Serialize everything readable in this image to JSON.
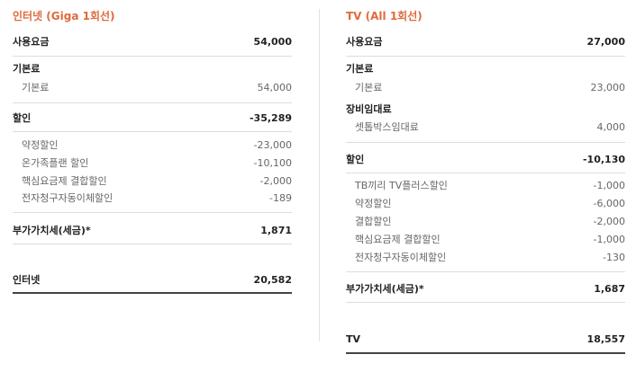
{
  "internet": {
    "title": "인터넷 (Giga 1회선)",
    "usage": {
      "label": "사용요금",
      "value": "54,000"
    },
    "basic": {
      "label": "기본료",
      "items": [
        {
          "label": "기본료",
          "value": "54,000"
        }
      ]
    },
    "discount": {
      "label": "할인",
      "value": "-35,289",
      "items": [
        {
          "label": "약정할인",
          "value": "-23,000"
        },
        {
          "label": "온가족플랜 할인",
          "value": "-10,100"
        },
        {
          "label": "핵심요금제 결합할인",
          "value": "-2,000"
        },
        {
          "label": "전자청구자동이체할인",
          "value": "-189"
        }
      ]
    },
    "vat": {
      "label": "부가가치세(세금)*",
      "value": "1,871"
    },
    "total": {
      "label": "인터넷",
      "value": "20,582"
    }
  },
  "tv": {
    "title": "TV (All 1회선)",
    "usage": {
      "label": "사용요금",
      "value": "27,000"
    },
    "basic": {
      "label": "기본료",
      "items": [
        {
          "label": "기본료",
          "value": "23,000"
        }
      ]
    },
    "rental": {
      "label": "장비임대료",
      "items": [
        {
          "label": "셋톱박스임대료",
          "value": "4,000"
        }
      ]
    },
    "discount": {
      "label": "할인",
      "value": "-10,130",
      "items": [
        {
          "label": "TB끼리 TV플러스할인",
          "value": "-1,000"
        },
        {
          "label": "약정할인",
          "value": "-6,000"
        },
        {
          "label": "결합할인",
          "value": "-2,000"
        },
        {
          "label": "핵심요금제 결합할인",
          "value": "-1,000"
        },
        {
          "label": "전자청구자동이체할인",
          "value": "-130"
        }
      ]
    },
    "vat": {
      "label": "부가가치세(세금)*",
      "value": "1,687"
    },
    "total": {
      "label": "TV",
      "value": "18,557"
    }
  }
}
